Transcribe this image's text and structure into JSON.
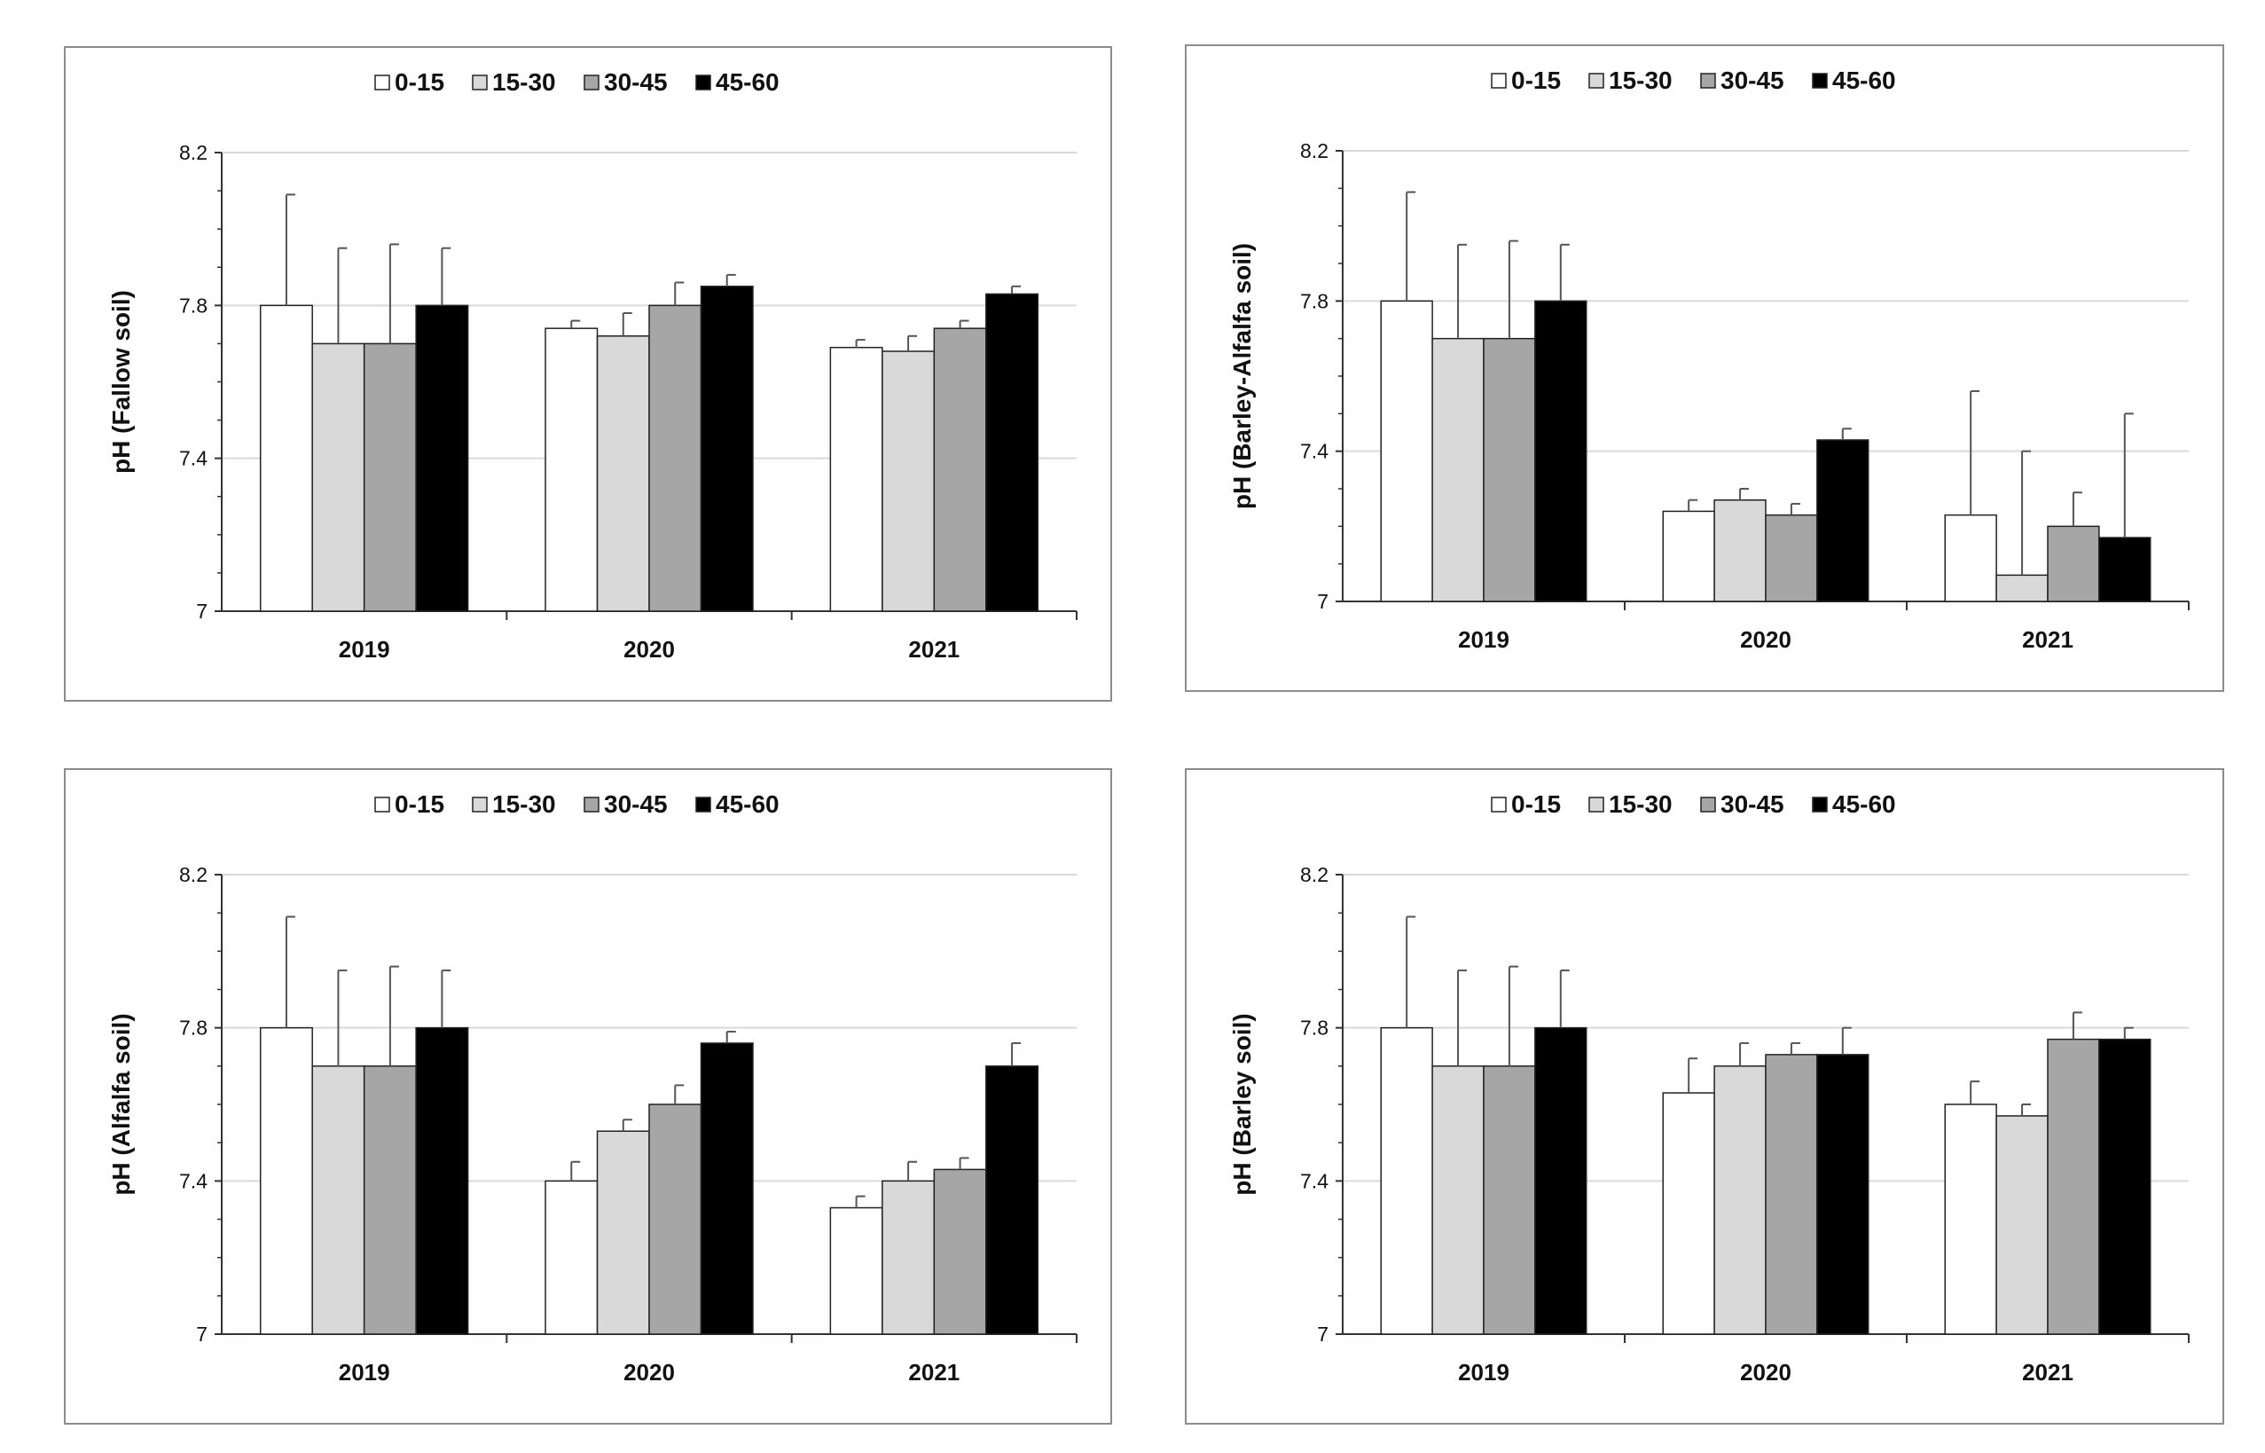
{
  "chart_data": [
    {
      "type": "bar",
      "ylabel": "pH (Fallow soil)",
      "xlabel": "",
      "categories": [
        "2019",
        "2020",
        "2021"
      ],
      "ylim": [
        7,
        8.2
      ],
      "yticks": [
        "7",
        "7.4",
        "7.8",
        "8.2"
      ],
      "legend_position": "top-center",
      "series": [
        {
          "name": "0-15",
          "values": [
            7.8,
            7.74,
            7.69
          ],
          "errors": [
            0.29,
            0.02,
            0.02
          ]
        },
        {
          "name": "15-30",
          "values": [
            7.7,
            7.72,
            7.68
          ],
          "errors": [
            0.25,
            0.06,
            0.04
          ]
        },
        {
          "name": "30-45",
          "values": [
            7.7,
            7.8,
            7.74
          ],
          "errors": [
            0.26,
            0.06,
            0.02
          ]
        },
        {
          "name": "45-60",
          "values": [
            7.8,
            7.85,
            7.83
          ],
          "errors": [
            0.15,
            0.03,
            0.02
          ]
        }
      ]
    },
    {
      "type": "bar",
      "ylabel": "pH (Barley-Alfalfa soil)",
      "xlabel": "",
      "categories": [
        "2019",
        "2020",
        "2021"
      ],
      "ylim": [
        7,
        8.2
      ],
      "yticks": [
        "7",
        "7.4",
        "7.8",
        "8.2"
      ],
      "legend_position": "top-center",
      "series": [
        {
          "name": "0-15",
          "values": [
            7.8,
            7.24,
            7.23
          ],
          "errors": [
            0.29,
            0.03,
            0.33
          ]
        },
        {
          "name": "15-30",
          "values": [
            7.7,
            7.27,
            7.07
          ],
          "errors": [
            0.25,
            0.03,
            0.33
          ]
        },
        {
          "name": "30-45",
          "values": [
            7.7,
            7.23,
            7.2
          ],
          "errors": [
            0.26,
            0.03,
            0.09
          ]
        },
        {
          "name": "45-60",
          "values": [
            7.8,
            7.43,
            7.17
          ],
          "errors": [
            0.15,
            0.03,
            0.33
          ]
        }
      ]
    },
    {
      "type": "bar",
      "ylabel": "pH (Alfalfa soil)",
      "xlabel": "",
      "categories": [
        "2019",
        "2020",
        "2021"
      ],
      "ylim": [
        7,
        8.2
      ],
      "yticks": [
        "7",
        "7.4",
        "7.8",
        "8.2"
      ],
      "legend_position": "top-center",
      "series": [
        {
          "name": "0-15",
          "values": [
            7.8,
            7.4,
            7.33
          ],
          "errors": [
            0.29,
            0.05,
            0.03
          ]
        },
        {
          "name": "15-30",
          "values": [
            7.7,
            7.53,
            7.4
          ],
          "errors": [
            0.25,
            0.03,
            0.05
          ]
        },
        {
          "name": "30-45",
          "values": [
            7.7,
            7.6,
            7.43
          ],
          "errors": [
            0.26,
            0.05,
            0.03
          ]
        },
        {
          "name": "45-60",
          "values": [
            7.8,
            7.76,
            7.7
          ],
          "errors": [
            0.15,
            0.03,
            0.06
          ]
        }
      ]
    },
    {
      "type": "bar",
      "ylabel": "pH (Barley soil)",
      "xlabel": "",
      "categories": [
        "2019",
        "2020",
        "2021"
      ],
      "ylim": [
        7,
        8.2
      ],
      "yticks": [
        "7",
        "7.4",
        "7.8",
        "8.2"
      ],
      "legend_position": "top-center",
      "series": [
        {
          "name": "0-15",
          "values": [
            7.8,
            7.63,
            7.6
          ],
          "errors": [
            0.29,
            0.09,
            0.06
          ]
        },
        {
          "name": "15-30",
          "values": [
            7.7,
            7.7,
            7.57
          ],
          "errors": [
            0.25,
            0.06,
            0.03
          ]
        },
        {
          "name": "30-45",
          "values": [
            7.7,
            7.73,
            7.77
          ],
          "errors": [
            0.26,
            0.03,
            0.07
          ]
        },
        {
          "name": "45-60",
          "values": [
            7.8,
            7.73,
            7.77
          ],
          "errors": [
            0.15,
            0.07,
            0.03
          ]
        }
      ]
    }
  ],
  "colors": {
    "series": [
      "#ffffff",
      "#d9d9d9",
      "#a6a6a6",
      "#000000"
    ],
    "bar_stroke": "#222222",
    "grid": "#d9d9d9",
    "axis": "#333333"
  }
}
